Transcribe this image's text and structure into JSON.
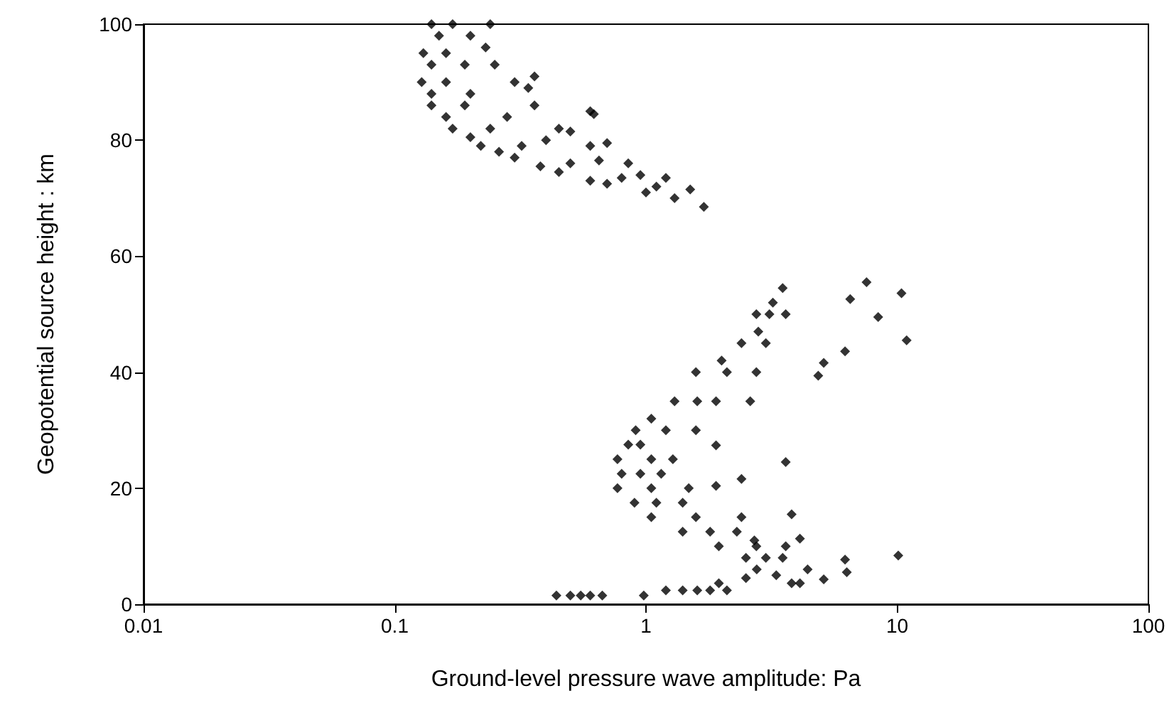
{
  "chart_data": {
    "type": "scatter",
    "xlabel": "Ground-level pressure wave amplitude: Pa",
    "ylabel": "Geopotential source height : km",
    "log": "x",
    "xlim": [
      0.01,
      100
    ],
    "xticks": [
      0.01,
      0.1,
      1,
      10,
      100
    ],
    "ylim": [
      0,
      100
    ],
    "yticks": [
      0,
      20,
      40,
      60,
      80,
      100
    ],
    "marker": "diamond",
    "series": [
      {
        "color": "#000000",
        "x": [
          0.14,
          0.13,
          0.128,
          0.14,
          0.17,
          0.22,
          0.3,
          0.45,
          0.7,
          1.0,
          1.3,
          1.7,
          0.17,
          0.16,
          0.16,
          0.19,
          0.24,
          0.32,
          0.5,
          0.8,
          1.1,
          0.24,
          0.23,
          0.25,
          0.3,
          0.36,
          0.45,
          0.6,
          0.85,
          1.2,
          1.5,
          0.36,
          0.34,
          0.6,
          0.62,
          0.7,
          0.5,
          3.5,
          2.75,
          1.58,
          0.91,
          0.77,
          0.77,
          1.05,
          1.95,
          2.76,
          1.95,
          3.8,
          3.6,
          2.75,
          1.58,
          1.28,
          1.48,
          2.4,
          3.6,
          4.4,
          3.1,
          2.1,
          1.2,
          1.05,
          1.05,
          1.58,
          2.75,
          7.55,
          10.4,
          6.5,
          8.4,
          10.9,
          6.2,
          5.1,
          4.85,
          3.6,
          2.4,
          3.8,
          10.1,
          6.2,
          6.3,
          5.1,
          4.1,
          1.9,
          1.9,
          2.7,
          4.1,
          0.44,
          0.5,
          0.55,
          0.6,
          0.67,
          0.98,
          1.2,
          1.4,
          1.6,
          1.8,
          2.1,
          0.15,
          0.14,
          0.14,
          0.16,
          0.2,
          0.26,
          0.38,
          0.6,
          0.2,
          0.19,
          0.2,
          0.28,
          0.4,
          0.65,
          0.95,
          3.2,
          2.4,
          2.0,
          1.3,
          1.6,
          1.9,
          1.05,
          0.85,
          0.95,
          0.8,
          0.95,
          1.15,
          0.9,
          1.1,
          1.4,
          1.4,
          1.8,
          2.3,
          2.5,
          3.0,
          3.5,
          3.3,
          2.5,
          3.0,
          2.6,
          2.8
        ],
        "values": [
          100,
          95,
          90,
          86,
          82,
          79,
          77,
          74.5,
          72.5,
          71,
          70,
          68.5,
          100,
          95,
          90,
          86,
          82,
          79,
          76,
          73.5,
          72,
          100,
          96,
          93,
          90,
          86,
          82,
          79,
          76,
          73.5,
          71.5,
          91,
          89,
          85,
          84.5,
          79.5,
          81.5,
          54.5,
          50,
          40,
          30,
          25,
          20,
          15,
          10,
          6,
          3.6,
          3.6,
          50,
          40,
          30,
          25,
          20,
          15,
          10,
          6,
          50,
          40,
          30,
          25,
          20,
          15,
          10,
          55.5,
          53.6,
          52.6,
          49.5,
          45.5,
          43.6,
          41.6,
          39.4,
          24.5,
          21.6,
          15.5,
          8.4,
          7.7,
          5.5,
          4.3,
          3.6,
          20.4,
          27.4,
          11,
          11.3,
          1.5,
          1.5,
          1.5,
          1.5,
          1.5,
          1.5,
          2.4,
          2.4,
          2.4,
          2.4,
          2.4,
          98,
          93,
          88,
          84,
          80.5,
          78,
          75.5,
          73,
          98,
          93,
          88,
          84,
          80,
          76.5,
          74,
          52,
          45,
          42,
          35,
          35,
          35,
          32,
          27.5,
          27.5,
          22.5,
          22.5,
          22.5,
          17.5,
          17.5,
          17.5,
          12.5,
          12.5,
          12.5,
          8,
          8,
          8,
          5,
          4.5,
          45,
          35,
          47
        ]
      }
    ]
  }
}
